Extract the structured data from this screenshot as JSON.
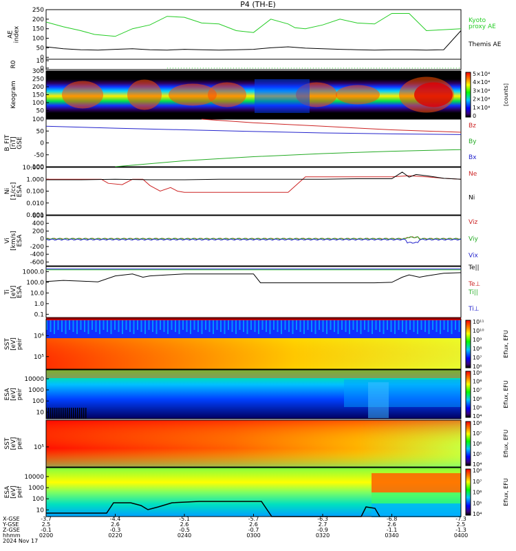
{
  "title": "P4 (TH-E)",
  "date_label": "2024 Nov 17",
  "chart_data": [
    {
      "type": "line",
      "id": "ae",
      "ylabel": "AE index",
      "ylim": [
        -10,
        250
      ],
      "yticks": [
        0,
        50,
        100,
        150,
        200,
        250
      ],
      "series": [
        {
          "name": "Kyoto proxy AE",
          "color": "#22cc22",
          "t": [
            0,
            5,
            10,
            14,
            20,
            25,
            30,
            35,
            40,
            45,
            50,
            55,
            60,
            65,
            70,
            72,
            75,
            80,
            85,
            90,
            95,
            100,
            105,
            110,
            115,
            120
          ],
          "v": [
            185,
            160,
            140,
            120,
            110,
            150,
            170,
            215,
            210,
            180,
            175,
            140,
            130,
            200,
            175,
            155,
            150,
            170,
            200,
            180,
            175,
            230,
            230,
            140,
            145,
            150
          ]
        },
        {
          "name": "Themis AE",
          "color": "#000000",
          "t": [
            0,
            5,
            10,
            15,
            20,
            25,
            30,
            35,
            40,
            45,
            50,
            55,
            60,
            65,
            70,
            75,
            80,
            85,
            90,
            95,
            100,
            105,
            110,
            115,
            118,
            120
          ],
          "v": [
            55,
            45,
            40,
            38,
            42,
            45,
            40,
            38,
            42,
            40,
            38,
            40,
            42,
            50,
            55,
            48,
            45,
            42,
            40,
            38,
            40,
            40,
            38,
            40,
            100,
            140
          ]
        }
      ]
    },
    {
      "type": "scatter",
      "id": "r0",
      "ylabel": "R0",
      "ylim": [
        -2,
        12
      ],
      "yticks": [
        0,
        10
      ],
      "series": [
        {
          "color": "#22cc22",
          "x_range": [
            35,
            120
          ],
          "value": 0
        }
      ]
    },
    {
      "type": "heatmap",
      "id": "keogram",
      "ylabel": "Keogram",
      "ylim": [
        0,
        300
      ],
      "yticks": [
        50,
        100,
        150,
        200,
        250,
        300
      ],
      "colorbar_label": "[counts]",
      "colorbar_ticks": [
        "0",
        "1×10⁴",
        "2×10⁴",
        "3×10⁴",
        "4×10⁴",
        "5×10⁴"
      ]
    },
    {
      "type": "line",
      "id": "bfield",
      "ylabel": "B_FIT [nT] GSE",
      "ylim": [
        -100,
        100
      ],
      "yticks": [
        -100,
        -50,
        0,
        50,
        100
      ],
      "series": [
        {
          "name": "Bz",
          "color": "#cc2222",
          "t": [
            45,
            60,
            80,
            100,
            120
          ],
          "v": [
            100,
            85,
            70,
            55,
            45
          ]
        },
        {
          "name": "By",
          "color": "#22aa22",
          "t": [
            20,
            40,
            60,
            80,
            100,
            120
          ],
          "v": [
            -100,
            -75,
            -58,
            -45,
            -35,
            -28
          ]
        },
        {
          "name": "Bx",
          "color": "#2222cc",
          "t": [
            0,
            20,
            40,
            60,
            80,
            100,
            120
          ],
          "v": [
            70,
            62,
            55,
            48,
            42,
            38,
            35
          ]
        }
      ]
    },
    {
      "type": "line",
      "id": "density",
      "ylabel": "Ni [1/cc] ESA",
      "yscale": "log",
      "ylim": [
        0.001,
        10
      ],
      "yticks": [
        "0.001",
        "0.010",
        "0.100",
        "1.000",
        "10.000"
      ],
      "series": [
        {
          "name": "Ne",
          "color": "#cc2222",
          "t": [
            0,
            16,
            18,
            22,
            25,
            28,
            30,
            33,
            36,
            38,
            40,
            45,
            55,
            60,
            65,
            70,
            75,
            80,
            82,
            85,
            90,
            95,
            100,
            105,
            110,
            115,
            120
          ],
          "v": [
            1.0,
            1.0,
            0.45,
            0.35,
            1.0,
            1.0,
            0.3,
            0.1,
            0.2,
            0.1,
            0.08,
            0.08,
            0.08,
            0.08,
            0.08,
            0.08,
            1.6,
            1.6,
            1.6,
            1.6,
            1.6,
            1.6,
            1.6,
            2.0,
            1.6,
            1.2,
            1.0
          ]
        },
        {
          "name": "Ni",
          "color": "#000000",
          "t": [
            0,
            10,
            20,
            30,
            40,
            50,
            60,
            70,
            80,
            90,
            100,
            103,
            105,
            107,
            110,
            115,
            120
          ],
          "v": [
            0.9,
            0.9,
            1.0,
            0.9,
            0.9,
            1.0,
            1.0,
            1.0,
            1.0,
            1.1,
            1.1,
            4.0,
            1.5,
            2.5,
            2.0,
            1.2,
            1.0
          ]
        }
      ]
    },
    {
      "type": "line",
      "id": "velocity",
      "ylabel": "Vi [km/s] ESA",
      "ylim": [
        -700,
        600
      ],
      "yticks": [
        -600,
        -400,
        -200,
        0,
        200,
        400,
        600
      ],
      "series": [
        {
          "name": "Viz",
          "color": "#cc2222",
          "value": 0
        },
        {
          "name": "Viy",
          "color": "#22aa22",
          "value": 0
        },
        {
          "name": "Vix",
          "color": "#2222cc",
          "value": -20
        }
      ]
    },
    {
      "type": "line",
      "id": "temperature",
      "ylabel": "Ti [eV] ESA",
      "yscale": "log",
      "ylim": [
        0.05,
        3000
      ],
      "yticks": [
        "0.1",
        "1.0",
        "10.0",
        "100.0",
        "1000.0"
      ],
      "legend": [
        "Te||",
        "Te⊥",
        "Ti||",
        "Ti⊥"
      ],
      "series": [
        {
          "name": "Te||",
          "color": "#000000",
          "t": [
            0,
            5,
            10,
            15,
            20,
            25,
            28,
            30,
            35,
            40,
            45,
            50,
            55,
            60,
            62,
            65,
            70,
            80,
            90,
            95,
            100,
            103,
            105,
            108,
            110,
            115,
            120
          ],
          "v": [
            120,
            150,
            130,
            110,
            400,
            600,
            300,
            400,
            500,
            600,
            600,
            600,
            600,
            600,
            90,
            90,
            90,
            90,
            90,
            90,
            100,
            300,
            500,
            300,
            400,
            700,
            800
          ]
        },
        {
          "name": "Ti||",
          "color": "#22aa22",
          "value": 1500
        },
        {
          "name": "Te⊥",
          "color": "#2222cc",
          "value": 1800
        }
      ]
    },
    {
      "type": "heatmap",
      "id": "sst_e",
      "ylabel": "SST [eV] peir",
      "yticks": [
        "10⁵",
        "10⁶"
      ],
      "colorbar_label": "Eflux, EFU",
      "colorbar_ticks": [
        "10⁶",
        "10⁷",
        "10⁸",
        "10⁹",
        "10¹⁰",
        "10¹¹"
      ]
    },
    {
      "type": "heatmap",
      "id": "esa_e",
      "ylabel": "ESA [eV] peir",
      "yticks": [
        "10",
        "100",
        "1000",
        "10000"
      ],
      "colorbar_label": "Eflux, EFU",
      "colorbar_ticks": [
        "10⁴",
        "10⁵",
        "10⁶",
        "10⁷",
        "10⁸",
        "10⁹"
      ]
    },
    {
      "type": "heatmap",
      "id": "sst_i",
      "ylabel": "SST [eV] peif",
      "yticks": [
        "10⁵"
      ],
      "colorbar_label": "Eflux, EFU",
      "colorbar_ticks": [
        "10⁴",
        "10⁵",
        "10⁶",
        "10⁷",
        "10⁸"
      ]
    },
    {
      "type": "heatmap",
      "id": "esa_i",
      "ylabel": "ESA [eV] peif",
      "yticks": [
        "10",
        "100",
        "1000",
        "10000"
      ],
      "colorbar_label": "Eflux, EFU",
      "colorbar_ticks": [
        "10⁴",
        "10⁵",
        "10⁶",
        "10⁷",
        "10⁸"
      ]
    }
  ],
  "x_axis": {
    "row_labels": [
      "X-GSE",
      "Y-GSE",
      "Z-GSE",
      "hhmm"
    ],
    "ticks": [
      {
        "t": 0,
        "x": "-3.7",
        "y": "2.5",
        "z": "-0.1",
        "hhmm": "0200"
      },
      {
        "t": 20,
        "x": "-4.4",
        "y": "2.6",
        "z": "-0.3",
        "hhmm": "0220"
      },
      {
        "t": 40,
        "x": "-5.1",
        "y": "2.6",
        "z": "-0.5",
        "hhmm": "0240"
      },
      {
        "t": 60,
        "x": "-5.7",
        "y": "2.6",
        "z": "-0.7",
        "hhmm": "0300"
      },
      {
        "t": 80,
        "x": "-6.3",
        "y": "2.7",
        "z": "-0.9",
        "hhmm": "0320"
      },
      {
        "t": 100,
        "x": "-6.8",
        "y": "2.6",
        "z": "-1.1",
        "hhmm": "0340"
      },
      {
        "t": 120,
        "x": "-7.3",
        "y": "2.5",
        "z": "-1.3",
        "hhmm": "0400"
      }
    ]
  }
}
